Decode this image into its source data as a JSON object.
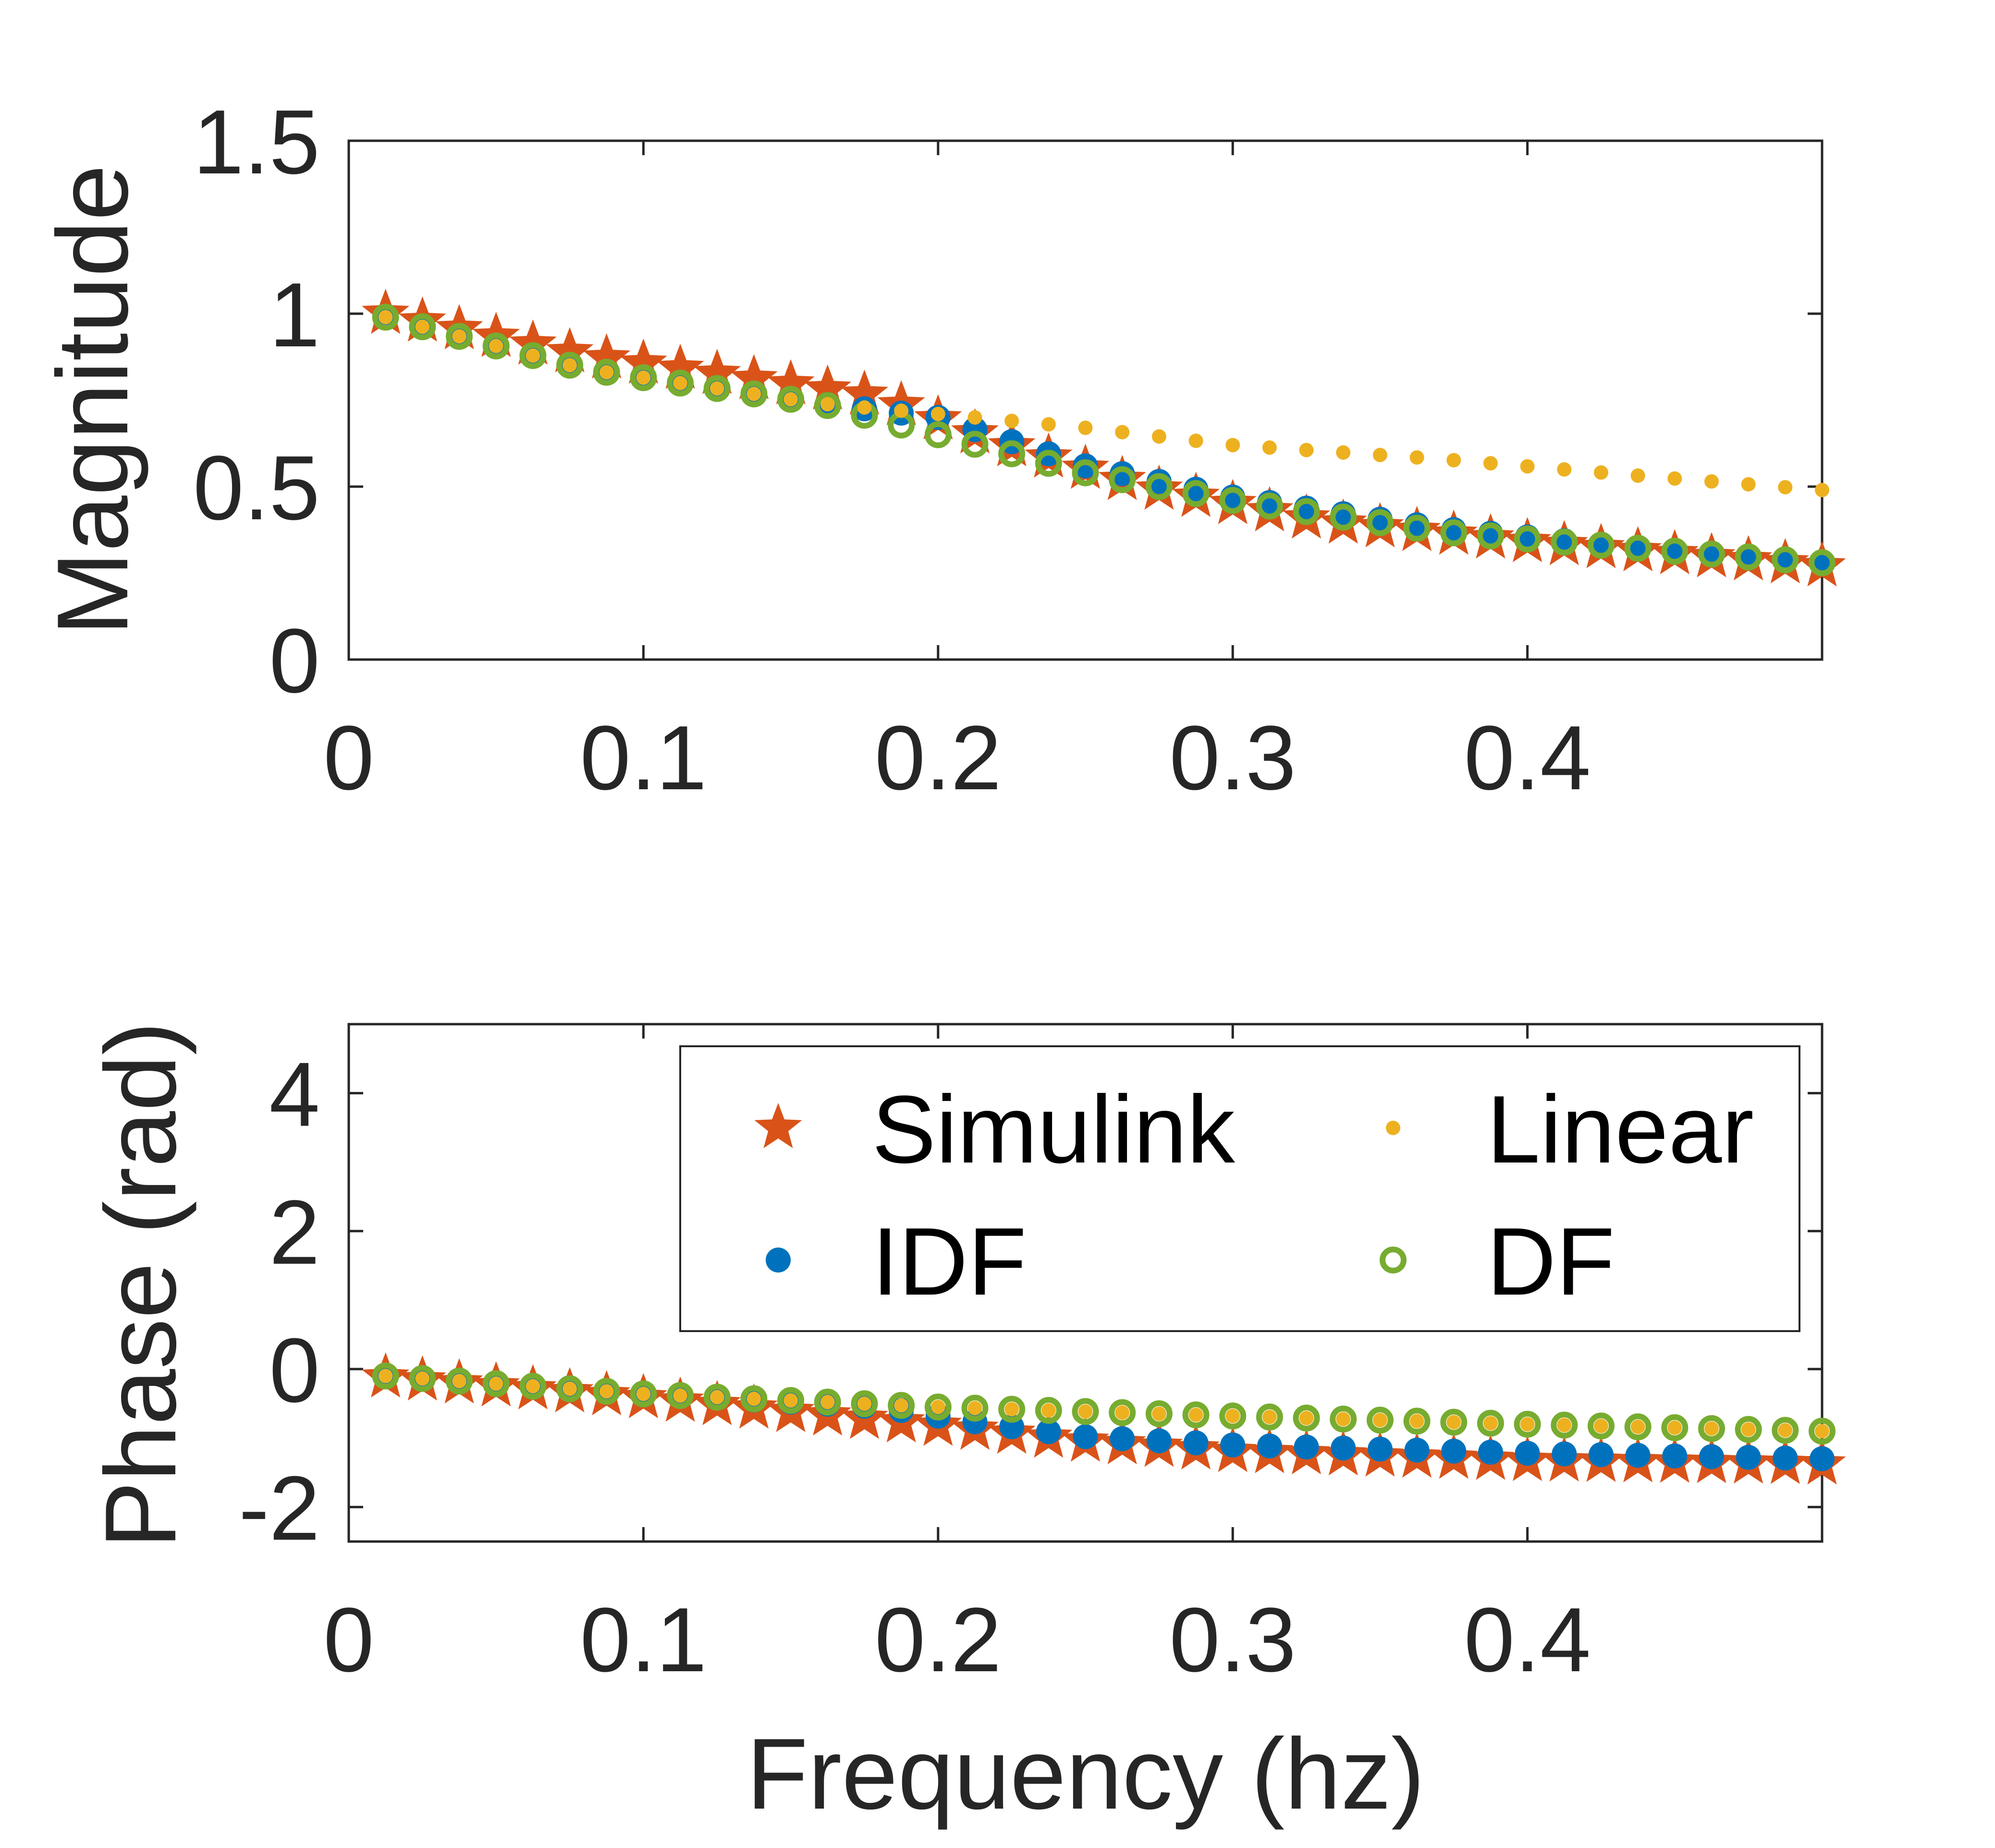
{
  "chart_data": [
    {
      "type": "scatter",
      "xlabel": "",
      "ylabel": "Magnitude",
      "xlim": [
        0,
        0.5
      ],
      "ylim": [
        0,
        1.5
      ],
      "xticks": [
        0,
        0.1,
        0.2,
        0.3,
        0.4
      ],
      "xtick_labels": [
        "0",
        "0.1",
        "0.2",
        "0.3",
        "0.4"
      ],
      "yticks": [
        0,
        0.5,
        1,
        1.5
      ],
      "ytick_labels": [
        "0",
        "0.5",
        "1",
        "1.5"
      ],
      "grid": false,
      "x_range": [
        0.0125,
        0.5
      ],
      "n_points": 40,
      "series": [
        {
          "name": "Simulink",
          "marker": "star",
          "color": "#D95319",
          "x": [
            0.0125,
            0.5
          ],
          "y_anchor_x": [
            0.0125,
            0.08,
            0.18,
            0.22,
            0.27,
            0.33,
            0.4,
            0.5
          ],
          "y_anchor_y": [
            1.0,
            0.88,
            0.76,
            0.63,
            0.5,
            0.4,
            0.34,
            0.27
          ]
        },
        {
          "name": "IDF",
          "marker": "filled-circle",
          "color": "#0072BD",
          "y_anchor_x": [
            0.0125,
            0.08,
            0.16,
            0.2,
            0.25,
            0.3,
            0.37,
            0.44,
            0.5
          ],
          "y_anchor_y": [
            0.99,
            0.84,
            0.74,
            0.7,
            0.56,
            0.47,
            0.38,
            0.32,
            0.28
          ]
        },
        {
          "name": "Linear",
          "marker": "dot",
          "color": "#EDB120",
          "y_anchor_x": [
            0.0125,
            0.08,
            0.16,
            0.2,
            0.25,
            0.3,
            0.37,
            0.44,
            0.5
          ],
          "y_anchor_y": [
            0.99,
            0.84,
            0.74,
            0.71,
            0.67,
            0.62,
            0.58,
            0.53,
            0.49
          ]
        },
        {
          "name": "DF",
          "marker": "open-circle",
          "color": "#77AC30",
          "y_anchor_x": [
            0.0125,
            0.08,
            0.16,
            0.2,
            0.25,
            0.3,
            0.37,
            0.44,
            0.5
          ],
          "y_anchor_y": [
            0.99,
            0.84,
            0.74,
            0.65,
            0.54,
            0.46,
            0.37,
            0.32,
            0.28
          ]
        }
      ]
    },
    {
      "type": "scatter",
      "xlabel": "Frequency (hz)",
      "ylabel": "Phase (rad)",
      "xlim": [
        0,
        0.5
      ],
      "ylim": [
        -2.5,
        5
      ],
      "xticks": [
        0,
        0.1,
        0.2,
        0.3,
        0.4
      ],
      "xtick_labels": [
        "0",
        "0.1",
        "0.2",
        "0.3",
        "0.4"
      ],
      "yticks": [
        -2,
        0,
        2,
        4
      ],
      "ytick_labels": [
        "-2",
        "0",
        "2",
        "4"
      ],
      "grid": false,
      "legend_position": "top-right",
      "legend_columns": 2,
      "x_range": [
        0.0125,
        0.5
      ],
      "n_points": 40,
      "series": [
        {
          "name": "Simulink",
          "marker": "star",
          "color": "#D95319",
          "y_anchor_x": [
            0.0125,
            0.1,
            0.2,
            0.25,
            0.3,
            0.4,
            0.5
          ],
          "y_anchor_y": [
            -0.12,
            -0.42,
            -0.82,
            -1.05,
            -1.2,
            -1.33,
            -1.38
          ]
        },
        {
          "name": "IDF",
          "marker": "filled-circle",
          "color": "#0072BD",
          "y_anchor_x": [
            0.0125,
            0.1,
            0.18,
            0.21,
            0.25,
            0.3,
            0.4,
            0.5
          ],
          "y_anchor_y": [
            -0.1,
            -0.36,
            -0.55,
            -0.75,
            -0.98,
            -1.1,
            -1.22,
            -1.3
          ]
        },
        {
          "name": "Linear",
          "marker": "dot",
          "color": "#EDB120",
          "y_anchor_x": [
            0.0125,
            0.1,
            0.2,
            0.3,
            0.4,
            0.5
          ],
          "y_anchor_y": [
            -0.1,
            -0.36,
            -0.55,
            -0.68,
            -0.8,
            -0.9
          ]
        },
        {
          "name": "DF",
          "marker": "open-circle",
          "color": "#77AC30",
          "y_anchor_x": [
            0.0125,
            0.1,
            0.2,
            0.3,
            0.4,
            0.5
          ],
          "y_anchor_y": [
            -0.1,
            -0.36,
            -0.55,
            -0.68,
            -0.8,
            -0.9
          ]
        }
      ]
    }
  ],
  "legend": {
    "entries": [
      {
        "label": "Simulink",
        "marker": "star",
        "color": "#D95319"
      },
      {
        "label": "Linear",
        "marker": "dot",
        "color": "#EDB120"
      },
      {
        "label": "IDF",
        "marker": "filled-circle",
        "color": "#0072BD"
      },
      {
        "label": "DF",
        "marker": "open-circle",
        "color": "#77AC30"
      }
    ]
  }
}
